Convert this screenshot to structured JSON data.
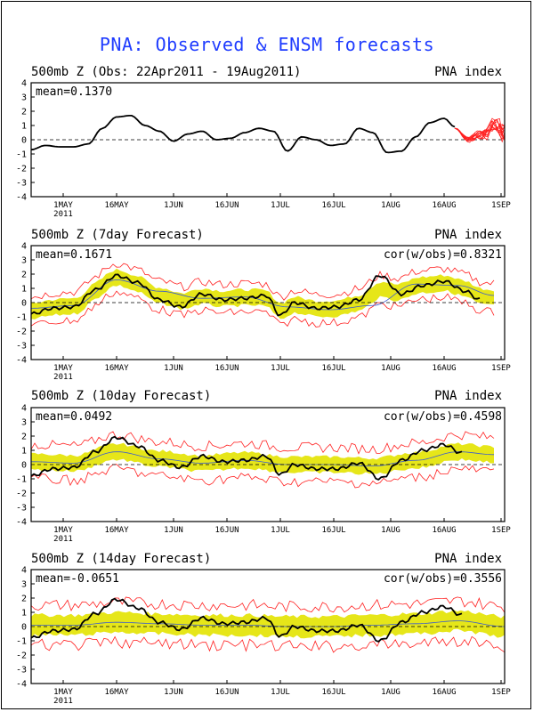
{
  "title": "PNA: Observed & ENSM forecasts",
  "x_ticks": [
    "1MAY",
    "16MAY",
    "1JUN",
    "16JUN",
    "1JUL",
    "16JUL",
    "1AUG",
    "16AUG",
    "1SEP"
  ],
  "year_label": "2011",
  "colors": {
    "title": "#1f3cff",
    "observed": "#000000",
    "spread": "#e6e619",
    "members": "#ff2020",
    "ens_mean": "#3a5bd0"
  },
  "panels": [
    {
      "title": "500mb Z (Obs: 22Apr2011 - 19Aug2011)",
      "index_label": "PNA index",
      "mean_text": "mean=0.1370",
      "cor_text": ""
    },
    {
      "title": "500mb Z (7day Forecast)",
      "index_label": "PNA index",
      "mean_text": "mean=0.1671",
      "cor_text": "cor(w/obs)=0.8321"
    },
    {
      "title": "500mb Z (10day Forecast)",
      "index_label": "PNA index",
      "mean_text": "mean=0.0492",
      "cor_text": "cor(w/obs)=0.4598"
    },
    {
      "title": "500mb Z (14day Forecast)",
      "index_label": "PNA index",
      "mean_text": "mean=-0.0651",
      "cor_text": "cor(w/obs)=0.3556"
    }
  ],
  "chart_data": [
    {
      "type": "line",
      "title": "500mb Z (Obs: 22Apr2011 - 19Aug2011)",
      "xlabel": "",
      "ylabel": "PNA index",
      "x_start": "2011-04-22",
      "x_end": "2011-09-02",
      "ylim": [
        -4,
        4
      ],
      "y_ticks": [
        -4,
        -3,
        -2,
        -1,
        0,
        1,
        2,
        3,
        4
      ],
      "zero_line": "dashed",
      "series": [
        {
          "role": "observed",
          "x": [
            "2011-04-22",
            "2011-04-26",
            "2011-04-30",
            "2011-05-04",
            "2011-05-08",
            "2011-05-12",
            "2011-05-16",
            "2011-05-20",
            "2011-05-24",
            "2011-05-28",
            "2011-06-01",
            "2011-06-05",
            "2011-06-09",
            "2011-06-13",
            "2011-06-17",
            "2011-06-21",
            "2011-06-25",
            "2011-06-29",
            "2011-07-03",
            "2011-07-07",
            "2011-07-11",
            "2011-07-15",
            "2011-07-19",
            "2011-07-23",
            "2011-07-27",
            "2011-07-31",
            "2011-08-04",
            "2011-08-08",
            "2011-08-12",
            "2011-08-16",
            "2011-08-19"
          ],
          "y": [
            -0.7,
            -0.4,
            -0.5,
            -0.5,
            -0.3,
            0.8,
            1.6,
            1.7,
            1.0,
            0.6,
            -0.1,
            0.4,
            0.6,
            0.0,
            0.1,
            0.5,
            0.8,
            0.6,
            -0.8,
            0.2,
            0.0,
            -0.4,
            -0.3,
            0.8,
            0.5,
            -0.9,
            -0.8,
            0.2,
            1.2,
            1.5,
            0.9
          ]
        },
        {
          "role": "members",
          "x": [
            "2011-08-19",
            "2011-08-23",
            "2011-08-27",
            "2011-08-31",
            "2011-09-02"
          ],
          "y": [
            0.8,
            0.0,
            0.5,
            1.0,
            0.6
          ]
        }
      ]
    },
    {
      "type": "line",
      "title": "500mb Z (7day Forecast)",
      "xlabel": "",
      "ylabel": "PNA index",
      "x_start": "2011-04-22",
      "x_end": "2011-09-02",
      "ylim": [
        -4,
        4
      ],
      "y_ticks": [
        -4,
        -3,
        -2,
        -1,
        0,
        1,
        2,
        3,
        4
      ],
      "zero_line": "dashed",
      "series": [
        {
          "role": "observed",
          "x": [
            "2011-04-22",
            "2011-04-28",
            "2011-05-04",
            "2011-05-10",
            "2011-05-16",
            "2011-05-22",
            "2011-05-28",
            "2011-06-03",
            "2011-06-09",
            "2011-06-15",
            "2011-06-21",
            "2011-06-27",
            "2011-07-01",
            "2011-07-05",
            "2011-07-11",
            "2011-07-17",
            "2011-07-23",
            "2011-07-29",
            "2011-08-04",
            "2011-08-10",
            "2011-08-16",
            "2011-08-22",
            "2011-08-26"
          ],
          "y": [
            -0.8,
            -0.4,
            -0.3,
            0.9,
            1.9,
            1.4,
            0.2,
            -0.3,
            0.6,
            0.2,
            0.3,
            0.5,
            -0.9,
            0.0,
            -0.4,
            -0.3,
            0.2,
            1.9,
            0.6,
            1.2,
            1.5,
            0.8,
            0.2
          ]
        },
        {
          "role": "forecast_mean",
          "x": [
            "2011-04-22",
            "2011-05-04",
            "2011-05-16",
            "2011-05-28",
            "2011-06-09",
            "2011-06-21",
            "2011-07-03",
            "2011-07-15",
            "2011-07-27",
            "2011-08-08",
            "2011-08-20",
            "2011-08-30"
          ],
          "y": [
            -0.4,
            -0.2,
            1.6,
            0.8,
            0.3,
            0.4,
            -0.3,
            -0.5,
            -0.2,
            1.3,
            1.2,
            0.5
          ]
        }
      ]
    },
    {
      "type": "line",
      "title": "500mb Z (10day Forecast)",
      "xlabel": "",
      "ylabel": "PNA index",
      "x_start": "2011-04-22",
      "x_end": "2011-09-02",
      "ylim": [
        -4,
        4
      ],
      "y_ticks": [
        -4,
        -3,
        -2,
        -1,
        0,
        1,
        2,
        3,
        4
      ],
      "zero_line": "dashed",
      "series": [
        {
          "role": "observed",
          "x": [
            "2011-04-22",
            "2011-04-28",
            "2011-05-04",
            "2011-05-10",
            "2011-05-16",
            "2011-05-22",
            "2011-05-28",
            "2011-06-03",
            "2011-06-09",
            "2011-06-15",
            "2011-06-21",
            "2011-06-27",
            "2011-07-01",
            "2011-07-05",
            "2011-07-11",
            "2011-07-17",
            "2011-07-23",
            "2011-07-29",
            "2011-08-04",
            "2011-08-10",
            "2011-08-16",
            "2011-08-21"
          ],
          "y": [
            -0.8,
            -0.3,
            -0.2,
            0.9,
            1.9,
            1.3,
            0.3,
            -0.2,
            0.6,
            0.2,
            0.3,
            0.6,
            -0.7,
            0.0,
            -0.3,
            -0.3,
            0.1,
            -1.0,
            0.3,
            1.0,
            1.4,
            0.8
          ]
        },
        {
          "role": "forecast_mean",
          "x": [
            "2011-04-22",
            "2011-05-04",
            "2011-05-16",
            "2011-05-28",
            "2011-06-09",
            "2011-06-21",
            "2011-07-03",
            "2011-07-15",
            "2011-07-27",
            "2011-08-08",
            "2011-08-20",
            "2011-08-30"
          ],
          "y": [
            0.2,
            0.1,
            0.9,
            0.4,
            0.1,
            0.3,
            0.0,
            0.0,
            -0.1,
            0.3,
            0.9,
            0.7
          ]
        }
      ]
    },
    {
      "type": "line",
      "title": "500mb Z (14day Forecast)",
      "xlabel": "",
      "ylabel": "PNA index",
      "x_start": "2011-04-22",
      "x_end": "2011-09-02",
      "ylim": [
        -4,
        4
      ],
      "y_ticks": [
        -4,
        -3,
        -2,
        -1,
        0,
        1,
        2,
        3,
        4
      ],
      "zero_line": "dashed",
      "series": [
        {
          "role": "observed",
          "x": [
            "2011-04-22",
            "2011-04-28",
            "2011-05-04",
            "2011-05-10",
            "2011-05-16",
            "2011-05-22",
            "2011-05-28",
            "2011-06-03",
            "2011-06-09",
            "2011-06-15",
            "2011-06-21",
            "2011-06-27",
            "2011-07-01",
            "2011-07-05",
            "2011-07-11",
            "2011-07-17",
            "2011-07-23",
            "2011-07-29",
            "2011-08-04",
            "2011-08-10",
            "2011-08-16",
            "2011-08-21"
          ],
          "y": [
            -0.8,
            -0.3,
            -0.2,
            0.9,
            1.9,
            1.3,
            0.3,
            -0.2,
            0.6,
            0.2,
            0.3,
            0.6,
            -0.7,
            0.0,
            -0.3,
            -0.3,
            0.1,
            -1.0,
            0.3,
            1.0,
            1.4,
            0.8
          ]
        },
        {
          "role": "forecast_mean",
          "x": [
            "2011-04-22",
            "2011-05-04",
            "2011-05-16",
            "2011-05-28",
            "2011-06-09",
            "2011-06-21",
            "2011-07-03",
            "2011-07-15",
            "2011-07-27",
            "2011-08-08",
            "2011-08-20",
            "2011-09-02"
          ],
          "y": [
            0.1,
            0.1,
            0.3,
            0.2,
            0.1,
            0.1,
            0.0,
            0.0,
            0.1,
            0.2,
            0.4,
            0.0
          ]
        }
      ]
    }
  ]
}
